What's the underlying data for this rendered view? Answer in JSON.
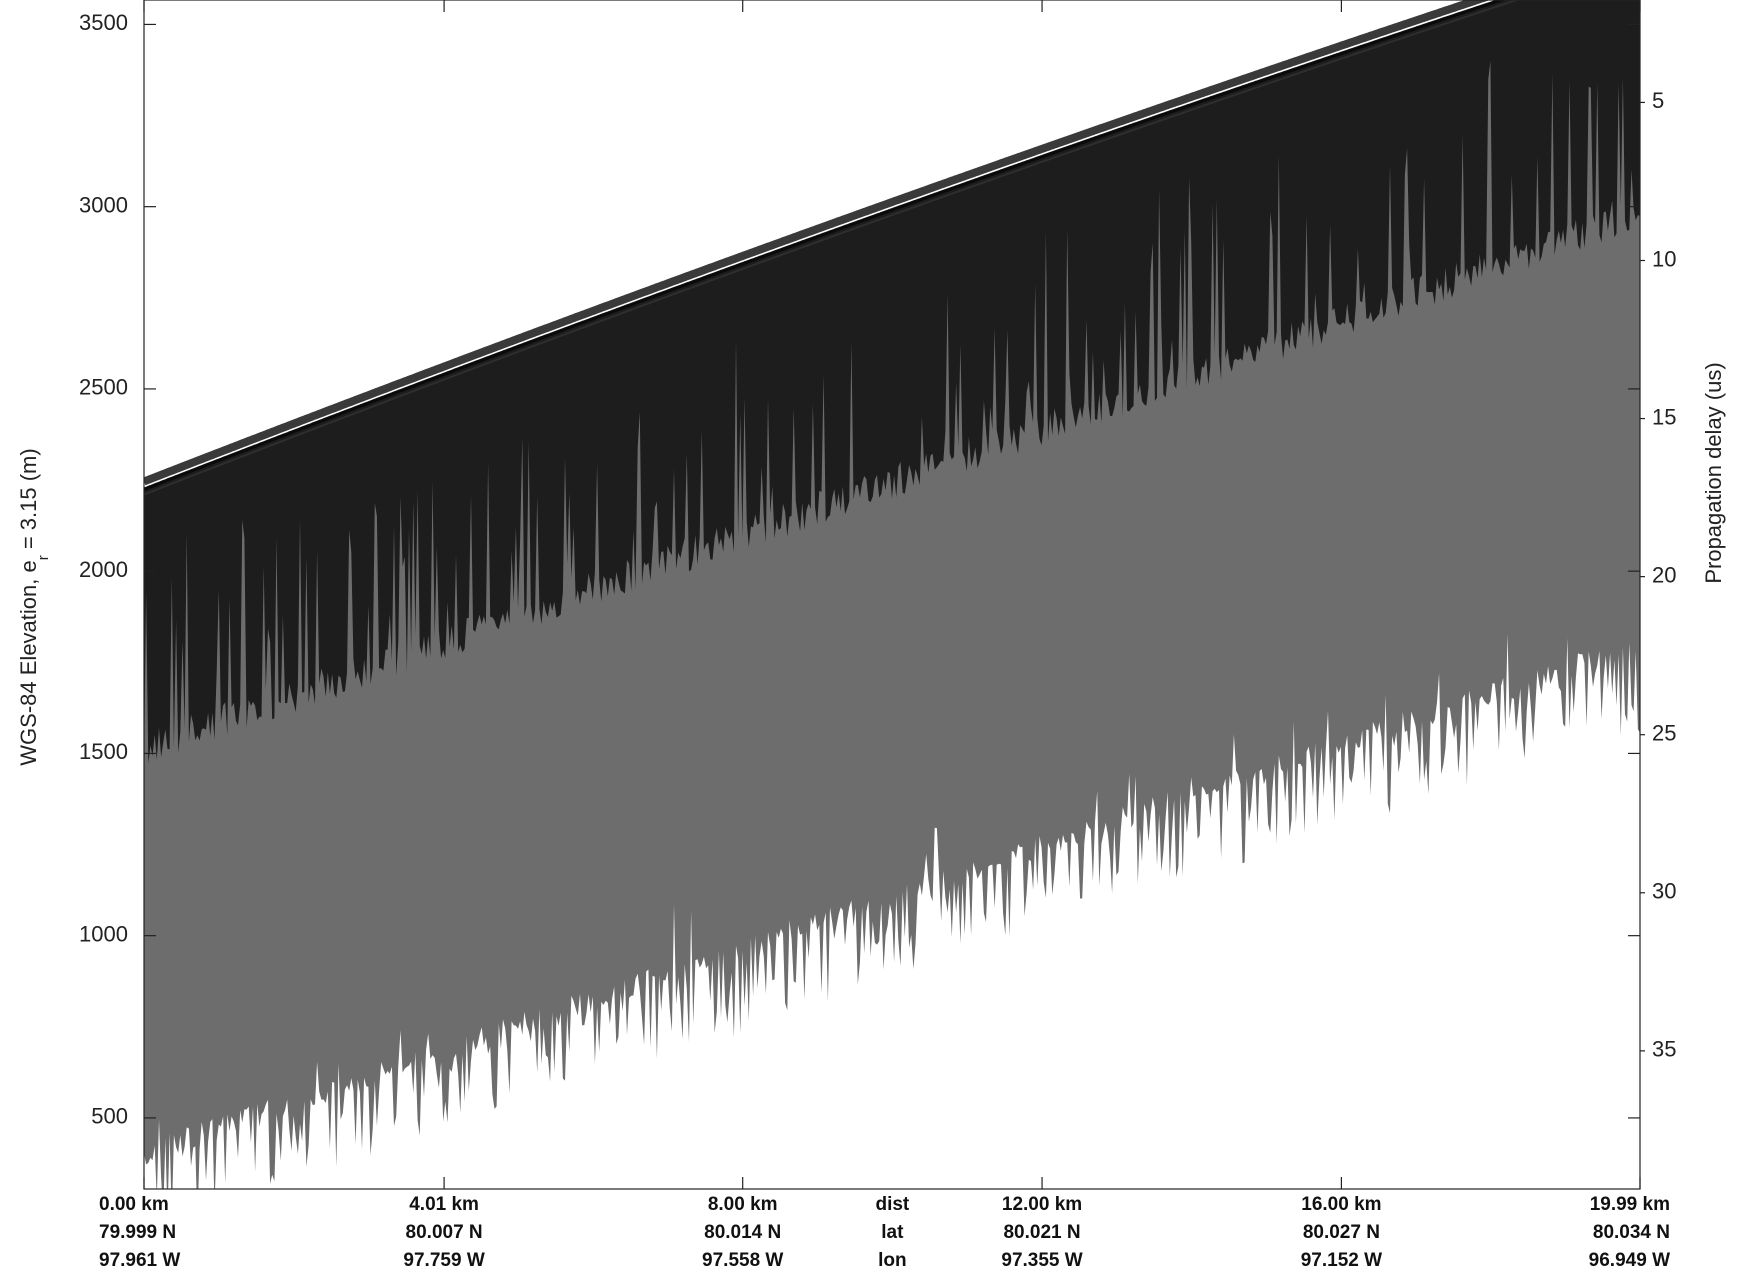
{
  "chart_data": {
    "type": "radargram",
    "y_label_parts": [
      "WGS-84 Elevation, e",
      "r",
      " = 3.15 (m)"
    ],
    "y2_label": "Propagation delay (us)",
    "xlim": [
      0,
      19.99
    ],
    "xticks": [
      {
        "value": 0,
        "label": "0.00 km"
      },
      {
        "value": 4.01,
        "label": "4.01 km"
      },
      {
        "value": 8,
        "label": "8.00 km"
      },
      {
        "value": 12,
        "label": "12.00 km"
      },
      {
        "value": 16,
        "label": "16.00 km"
      },
      {
        "value": 19.99,
        "label": "19.99 km"
      }
    ],
    "row_names": [
      "dist",
      "lat",
      "lon"
    ],
    "lat_labels": [
      "79.999 N",
      "80.007 N",
      "80.014 N",
      "80.021 N",
      "80.027 N",
      "80.034 N"
    ],
    "lon_labels": [
      "97.961 W",
      "97.759 W",
      "97.558 W",
      "97.355 W",
      "97.152 W",
      "96.949 W"
    ],
    "ylim": [
      305,
      3567
    ],
    "yticks": [
      500,
      1000,
      1500,
      2000,
      2500,
      3000,
      3500
    ],
    "y2lim": [
      1.76,
      39.37
    ],
    "y2ticks": [
      5,
      10,
      15,
      20,
      25,
      30,
      35
    ]
  }
}
